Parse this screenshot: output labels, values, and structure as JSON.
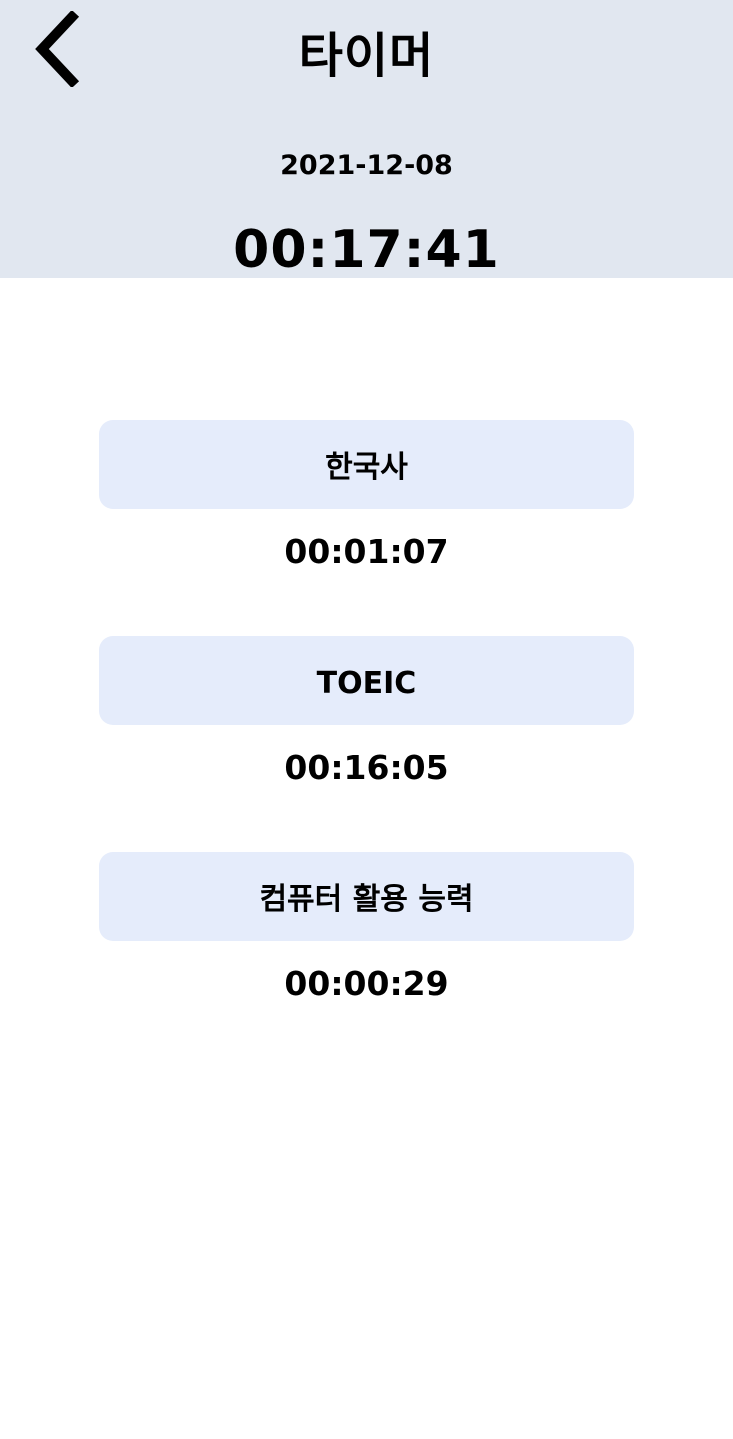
{
  "header": {
    "back_icon": "chevron-left-icon",
    "title": "타이머",
    "date": "2021-12-08",
    "total_time": "00:17:41",
    "background_color": "#e1e7f0"
  },
  "subjects": [
    {
      "name": "한국사",
      "time": "00:01:07"
    },
    {
      "name": "TOEIC",
      "time": "00:16:05"
    },
    {
      "name": "컴퓨터 활용 능력",
      "time": "00:00:29"
    }
  ],
  "card_color": "#e5ecfb"
}
